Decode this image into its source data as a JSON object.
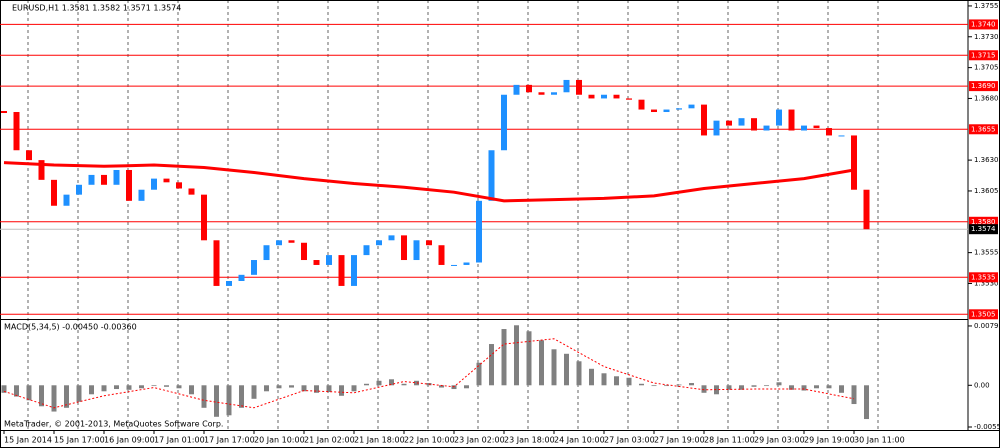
{
  "chart_data": [
    {
      "type": "candlestick",
      "title": "EURUSD,H1  1.3581 1.3582 1.3571 1.3574",
      "x_labels": [
        "15 Jan 2014",
        "15 Jan 17:00",
        "16 Jan 09:00",
        "17 Jan 01:00",
        "17 Jan 17:00",
        "20 Jan 10:00",
        "21 Jan 02:00",
        "21 Jan 18:00",
        "22 Jan 10:00",
        "23 Jan 02:00",
        "23 Jan 18:00",
        "24 Jan 10:00",
        "27 Jan 03:00",
        "27 Jan 19:00",
        "28 Jan 11:00",
        "29 Jan 03:00",
        "29 Jan 19:00",
        "30 Jan 11:00"
      ],
      "close": [
        1.3669,
        1.3638,
        1.363,
        1.3614,
        1.3593,
        1.3602,
        1.361,
        1.3618,
        1.361,
        1.3622,
        1.3597,
        1.3606,
        1.3615,
        1.3612,
        1.3607,
        1.3602,
        1.3565,
        1.3528,
        1.3532,
        1.3537,
        1.3549,
        1.3561,
        1.3565,
        1.3563,
        1.3549,
        1.3545,
        1.3553,
        1.3528,
        1.3553,
        1.3561,
        1.3565,
        1.3569,
        1.3549,
        1.3565,
        1.3561,
        1.3545,
        1.3545,
        1.3547,
        1.3597,
        1.3638,
        1.3683,
        1.3691,
        1.3685,
        1.3683,
        1.3685,
        1.3695,
        1.3683,
        1.368,
        1.3683,
        1.368,
        1.3679,
        1.3671,
        1.3669,
        1.3671,
        1.3672,
        1.3675,
        1.365,
        1.3662,
        1.3658,
        1.3664,
        1.3654,
        1.3658,
        1.3671,
        1.3654,
        1.3658,
        1.3656,
        1.365,
        1.365,
        1.3606,
        1.3574
      ],
      "up_color": "#1e90ff",
      "down_color": "#ff0000",
      "ma": {
        "color": "#ff0000",
        "x": [
          0,
          4,
          8,
          12,
          16,
          20,
          24,
          28,
          32,
          36,
          40,
          44,
          48,
          52,
          56,
          60,
          64,
          68
        ],
        "values": [
          1.3628,
          1.3626,
          1.3625,
          1.3626,
          1.3624,
          1.362,
          1.3615,
          1.3611,
          1.3608,
          1.3604,
          1.3597,
          1.3598,
          1.3599,
          1.3601,
          1.3607,
          1.3611,
          1.3615,
          1.3622
        ]
      },
      "levels": [
        {
          "value": 1.374,
          "label": "1.3740"
        },
        1.3715,
        {
          "value": 1.369,
          "label": "1.3690"
        },
        1.3655,
        {
          "value": 1.358,
          "label": "1.3580"
        },
        1.3535,
        1.3505
      ],
      "level_color": "#ff0000",
      "current": 1.3574,
      "ylim": [
        1.3502,
        1.3759
      ],
      "yticks": [
        1.3755,
        {
          "value": 1.373,
          "label": "1.3730"
        },
        1.3705,
        {
          "value": 1.368,
          "label": "1.3680"
        },
        {
          "value": 1.363,
          "label": "1.3630"
        },
        1.3605,
        1.3555,
        {
          "value": 1.353,
          "label": "1.3530"
        }
      ],
      "grid": true
    },
    {
      "type": "macd",
      "title": "MACD(5,34,5) -0.00450 -0.00360",
      "annotation": "MetaTrader, © 2001-2013, MetaQuotes Software Corp.",
      "values": [
        -0.001,
        -0.0015,
        -0.002,
        -0.0028,
        -0.0035,
        -0.003,
        -0.0022,
        -0.0012,
        -0.0008,
        -0.0005,
        -0.0006,
        -0.0004,
        -0.0001,
        -0.0002,
        -0.0004,
        -0.0012,
        -0.003,
        -0.0042,
        -0.004,
        -0.003,
        -0.0018,
        -0.0008,
        -0.0004,
        -0.0003,
        -0.0008,
        -0.001,
        -0.0009,
        -0.0014,
        -0.0008,
        0.0002,
        0.0006,
        0.0008,
        0.0002,
        0.0006,
        0.0003,
        -0.0003,
        -0.0005,
        -0.0004,
        0.003,
        0.0055,
        0.0075,
        0.008,
        0.0072,
        0.006,
        0.0048,
        0.0042,
        0.0032,
        0.0022,
        0.0016,
        0.0012,
        0.001,
        0.0002,
        -0.0001,
        -0.0001,
        0.0001,
        0.0003,
        -0.001,
        -0.0012,
        -0.0006,
        -0.0006,
        -0.0002,
        -0.0001,
        0.0004,
        -0.0006,
        -0.0007,
        -0.0004,
        -0.0004,
        -0.001,
        -0.0025,
        -0.0045
      ],
      "color": "#808080",
      "signal": {
        "color": "#ff0000",
        "x": [
          0,
          4,
          8,
          12,
          16,
          20,
          24,
          28,
          32,
          36,
          40,
          44,
          48,
          52,
          56,
          60,
          64,
          68
        ],
        "values": [
          -0.0008,
          -0.003,
          -0.0014,
          -0.0003,
          -0.002,
          -0.003,
          -0.0007,
          -0.001,
          0.0005,
          -0.0002,
          0.0055,
          0.0062,
          0.0025,
          0.0003,
          -0.0006,
          -0.0005,
          -0.0005,
          -0.0018
        ]
      },
      "ylim": [
        -0.00596,
        0.00857
      ],
      "yticks": [
        0.00791,
        {
          "value": 0,
          "label": "0.00"
        },
        -0.00556
      ]
    }
  ]
}
